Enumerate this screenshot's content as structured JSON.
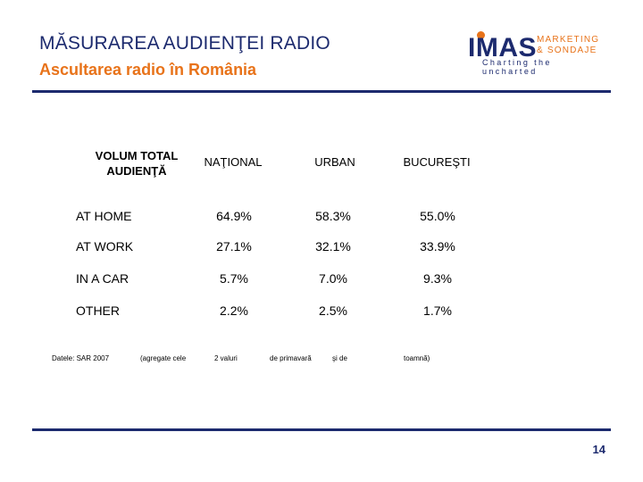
{
  "header": {
    "title": "MĂSURAREA AUDIENŢEI RADIO",
    "subtitle": "Ascultarea radio în România"
  },
  "logo": {
    "main": "IMAS",
    "line1": "MARKETING",
    "line2": "& SONDAJE",
    "tagline": "Charting the uncharted"
  },
  "table": {
    "corner_header": "VOLUM TOTAL AUDIENŢĂ",
    "columns": [
      "NAŢIONAL",
      "URBAN",
      "BUCUREŞTI"
    ],
    "rows": [
      {
        "label": "AT HOME",
        "values": [
          "64.9%",
          "58.3%",
          "55.0%"
        ]
      },
      {
        "label": "AT WORK",
        "values": [
          "27.1%",
          "32.1%",
          "33.9%"
        ]
      },
      {
        "label": "IN A CAR",
        "values": [
          "5.7%",
          "7.0%",
          "9.3%"
        ]
      },
      {
        "label": "OTHER",
        "values": [
          "2.2%",
          "2.5%",
          "1.7%"
        ]
      }
    ]
  },
  "footnote": {
    "parts": [
      "Datele: SAR 2007",
      "(agregate cele",
      "2 valuri",
      "de primavară",
      "şi de",
      "toamnă)"
    ]
  },
  "footer": {
    "page_number": "14"
  },
  "colors": {
    "navy": "#1c2a6e",
    "orange": "#e8731a"
  }
}
